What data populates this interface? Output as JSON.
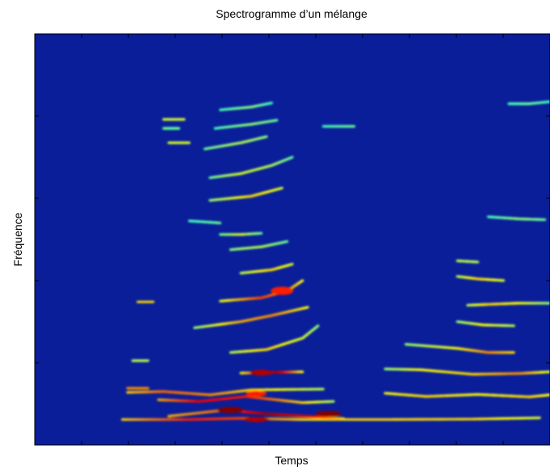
{
  "chart_data": {
    "type": "heatmap",
    "title": "Spectrogramme d’un mélange",
    "xlabel": "Temps",
    "ylabel": "Fréquence",
    "colormap": "jet",
    "background_color": "#0a1e9a",
    "x_tick_labels": [],
    "y_tick_labels": [],
    "note_units": "time and frequency in normalized 0-1 units of the axes (0 = left/bottom)",
    "harmonic_tracks": [
      {
        "points": [
          [
            0.17,
            0.062
          ],
          [
            0.3,
            0.062
          ],
          [
            0.4,
            0.065
          ],
          [
            0.52,
            0.062
          ],
          [
            0.68,
            0.062
          ],
          [
            0.85,
            0.063
          ],
          [
            0.98,
            0.066
          ]
        ],
        "intensity": [
          0.55,
          0.8,
          0.75,
          0.55,
          0.55,
          0.55,
          0.45
        ],
        "width": 0.006
      },
      {
        "points": [
          [
            0.26,
            0.07
          ],
          [
            0.37,
            0.085
          ],
          [
            0.45,
            0.076
          ],
          [
            0.55,
            0.068
          ],
          [
            0.6,
            0.064
          ]
        ],
        "intensity": [
          0.6,
          0.7,
          0.95,
          0.8,
          0.55
        ],
        "width": 0.006
      },
      {
        "points": [
          [
            0.24,
            0.11
          ],
          [
            0.32,
            0.106
          ],
          [
            0.41,
            0.118
          ],
          [
            0.52,
            0.103
          ],
          [
            0.58,
            0.106
          ]
        ],
        "intensity": [
          0.6,
          0.85,
          0.8,
          0.55,
          0.4
        ],
        "width": 0.006
      },
      {
        "points": [
          [
            0.18,
            0.128
          ],
          [
            0.25,
            0.13
          ],
          [
            0.34,
            0.122
          ],
          [
            0.42,
            0.134
          ],
          [
            0.56,
            0.136
          ]
        ],
        "intensity": [
          0.55,
          0.7,
          0.65,
          0.55,
          0.4
        ],
        "width": 0.006
      },
      {
        "points": [
          [
            0.68,
            0.126
          ],
          [
            0.76,
            0.118
          ],
          [
            0.86,
            0.123
          ],
          [
            0.96,
            0.117
          ],
          [
            1.0,
            0.122
          ]
        ],
        "intensity": [
          0.5,
          0.55,
          0.5,
          0.55,
          0.5
        ],
        "width": 0.006
      },
      {
        "points": [
          [
            0.18,
            0.138
          ],
          [
            0.22,
            0.138
          ]
        ],
        "intensity": [
          0.65,
          0.65
        ],
        "width": 0.006
      },
      {
        "points": [
          [
            0.4,
            0.175
          ],
          [
            0.47,
            0.177
          ],
          [
            0.52,
            0.178
          ]
        ],
        "intensity": [
          0.5,
          0.95,
          0.5
        ],
        "width": 0.006
      },
      {
        "points": [
          [
            0.68,
            0.185
          ],
          [
            0.75,
            0.183
          ],
          [
            0.85,
            0.172
          ],
          [
            0.94,
            0.174
          ],
          [
            1.0,
            0.178
          ]
        ],
        "intensity": [
          0.35,
          0.5,
          0.55,
          0.65,
          0.45
        ],
        "width": 0.006
      },
      {
        "points": [
          [
            0.19,
            0.205
          ],
          [
            0.22,
            0.205
          ]
        ],
        "intensity": [
          0.4,
          0.4
        ],
        "width": 0.006
      },
      {
        "points": [
          [
            0.38,
            0.225
          ],
          [
            0.45,
            0.232
          ],
          [
            0.52,
            0.26
          ],
          [
            0.55,
            0.29
          ]
        ],
        "intensity": [
          0.4,
          0.55,
          0.45,
          0.35
        ],
        "width": 0.006
      },
      {
        "points": [
          [
            0.72,
            0.245
          ],
          [
            0.82,
            0.235
          ],
          [
            0.88,
            0.225
          ],
          [
            0.93,
            0.225
          ]
        ],
        "intensity": [
          0.35,
          0.5,
          0.65,
          0.55
        ],
        "width": 0.006
      },
      {
        "points": [
          [
            0.31,
            0.285
          ],
          [
            0.4,
            0.3
          ],
          [
            0.46,
            0.315
          ],
          [
            0.53,
            0.335
          ]
        ],
        "intensity": [
          0.35,
          0.6,
          0.65,
          0.5
        ],
        "width": 0.006
      },
      {
        "points": [
          [
            0.82,
            0.3
          ],
          [
            0.87,
            0.292
          ],
          [
            0.93,
            0.29
          ]
        ],
        "intensity": [
          0.35,
          0.5,
          0.4
        ],
        "width": 0.006
      },
      {
        "points": [
          [
            0.36,
            0.35
          ],
          [
            0.44,
            0.358
          ],
          [
            0.49,
            0.375
          ],
          [
            0.52,
            0.4
          ]
        ],
        "intensity": [
          0.45,
          0.75,
          0.65,
          0.5
        ],
        "width": 0.006
      },
      {
        "points": [
          [
            0.84,
            0.34
          ],
          [
            0.88,
            0.342
          ],
          [
            0.94,
            0.345
          ],
          [
            1.0,
            0.345
          ]
        ],
        "intensity": [
          0.4,
          0.55,
          0.5,
          0.35
        ],
        "width": 0.006
      },
      {
        "points": [
          [
            0.2,
            0.348
          ],
          [
            0.23,
            0.348
          ]
        ],
        "intensity": [
          0.55,
          0.55
        ],
        "width": 0.006
      },
      {
        "points": [
          [
            0.4,
            0.418
          ],
          [
            0.46,
            0.426
          ],
          [
            0.5,
            0.44
          ]
        ],
        "intensity": [
          0.4,
          0.55,
          0.45
        ],
        "width": 0.006
      },
      {
        "points": [
          [
            0.82,
            0.41
          ],
          [
            0.86,
            0.404
          ],
          [
            0.91,
            0.4
          ]
        ],
        "intensity": [
          0.4,
          0.55,
          0.45
        ],
        "width": 0.006
      },
      {
        "points": [
          [
            0.82,
            0.448
          ],
          [
            0.86,
            0.445
          ]
        ],
        "intensity": [
          0.4,
          0.4
        ],
        "width": 0.006
      },
      {
        "points": [
          [
            0.38,
            0.475
          ],
          [
            0.44,
            0.482
          ],
          [
            0.49,
            0.495
          ]
        ],
        "intensity": [
          0.35,
          0.4,
          0.3
        ],
        "width": 0.006
      },
      {
        "points": [
          [
            0.34,
            0.595
          ],
          [
            0.42,
            0.605
          ],
          [
            0.48,
            0.625
          ]
        ],
        "intensity": [
          0.35,
          0.55,
          0.45
        ],
        "width": 0.006
      },
      {
        "points": [
          [
            0.34,
            0.65
          ],
          [
            0.4,
            0.66
          ],
          [
            0.46,
            0.68
          ],
          [
            0.5,
            0.7
          ]
        ],
        "intensity": [
          0.3,
          0.45,
          0.4,
          0.3
        ],
        "width": 0.006
      },
      {
        "points": [
          [
            0.33,
            0.72
          ],
          [
            0.4,
            0.735
          ],
          [
            0.45,
            0.75
          ]
        ],
        "intensity": [
          0.3,
          0.4,
          0.35
        ],
        "width": 0.006
      },
      {
        "points": [
          [
            0.26,
            0.735
          ],
          [
            0.3,
            0.735
          ]
        ],
        "intensity": [
          0.45,
          0.45
        ],
        "width": 0.006
      },
      {
        "points": [
          [
            0.25,
            0.792
          ],
          [
            0.29,
            0.792
          ]
        ],
        "intensity": [
          0.45,
          0.45
        ],
        "width": 0.006
      },
      {
        "points": [
          [
            0.35,
            0.77
          ],
          [
            0.42,
            0.78
          ],
          [
            0.47,
            0.79
          ]
        ],
        "intensity": [
          0.25,
          0.35,
          0.3
        ],
        "width": 0.006
      },
      {
        "points": [
          [
            0.36,
            0.815
          ],
          [
            0.42,
            0.822
          ],
          [
            0.46,
            0.832
          ]
        ],
        "intensity": [
          0.25,
          0.35,
          0.25
        ],
        "width": 0.006
      },
      {
        "points": [
          [
            0.25,
            0.77
          ],
          [
            0.28,
            0.77
          ]
        ],
        "intensity": [
          0.3,
          0.3
        ],
        "width": 0.006
      },
      {
        "points": [
          [
            0.56,
            0.775
          ],
          [
            0.62,
            0.775
          ]
        ],
        "intensity": [
          0.25,
          0.3
        ],
        "width": 0.006
      },
      {
        "points": [
          [
            0.92,
            0.83
          ],
          [
            0.96,
            0.83
          ],
          [
            1.0,
            0.835
          ]
        ],
        "intensity": [
          0.25,
          0.3,
          0.25
        ],
        "width": 0.006
      },
      {
        "points": [
          [
            0.36,
            0.512
          ],
          [
            0.4,
            0.512
          ],
          [
            0.44,
            0.515
          ]
        ],
        "intensity": [
          0.3,
          0.45,
          0.3
        ],
        "width": 0.006
      },
      {
        "points": [
          [
            0.3,
            0.545
          ],
          [
            0.36,
            0.54
          ]
        ],
        "intensity": [
          0.25,
          0.3
        ],
        "width": 0.006
      },
      {
        "points": [
          [
            0.88,
            0.555
          ],
          [
            0.94,
            0.55
          ],
          [
            0.99,
            0.548
          ]
        ],
        "intensity": [
          0.25,
          0.35,
          0.3
        ],
        "width": 0.006
      }
    ],
    "hot_spots": [
      {
        "t": 0.38,
        "f": 0.085,
        "intensity": 1.0,
        "rx": 0.025,
        "ry": 0.008
      },
      {
        "t": 0.43,
        "f": 0.062,
        "intensity": 0.95,
        "rx": 0.025,
        "ry": 0.006
      },
      {
        "t": 0.57,
        "f": 0.076,
        "intensity": 1.0,
        "rx": 0.025,
        "ry": 0.007
      },
      {
        "t": 0.44,
        "f": 0.176,
        "intensity": 0.95,
        "rx": 0.022,
        "ry": 0.007
      },
      {
        "t": 0.48,
        "f": 0.375,
        "intensity": 0.85,
        "rx": 0.022,
        "ry": 0.01
      },
      {
        "t": 0.43,
        "f": 0.125,
        "intensity": 0.85,
        "rx": 0.02,
        "ry": 0.007
      }
    ]
  }
}
